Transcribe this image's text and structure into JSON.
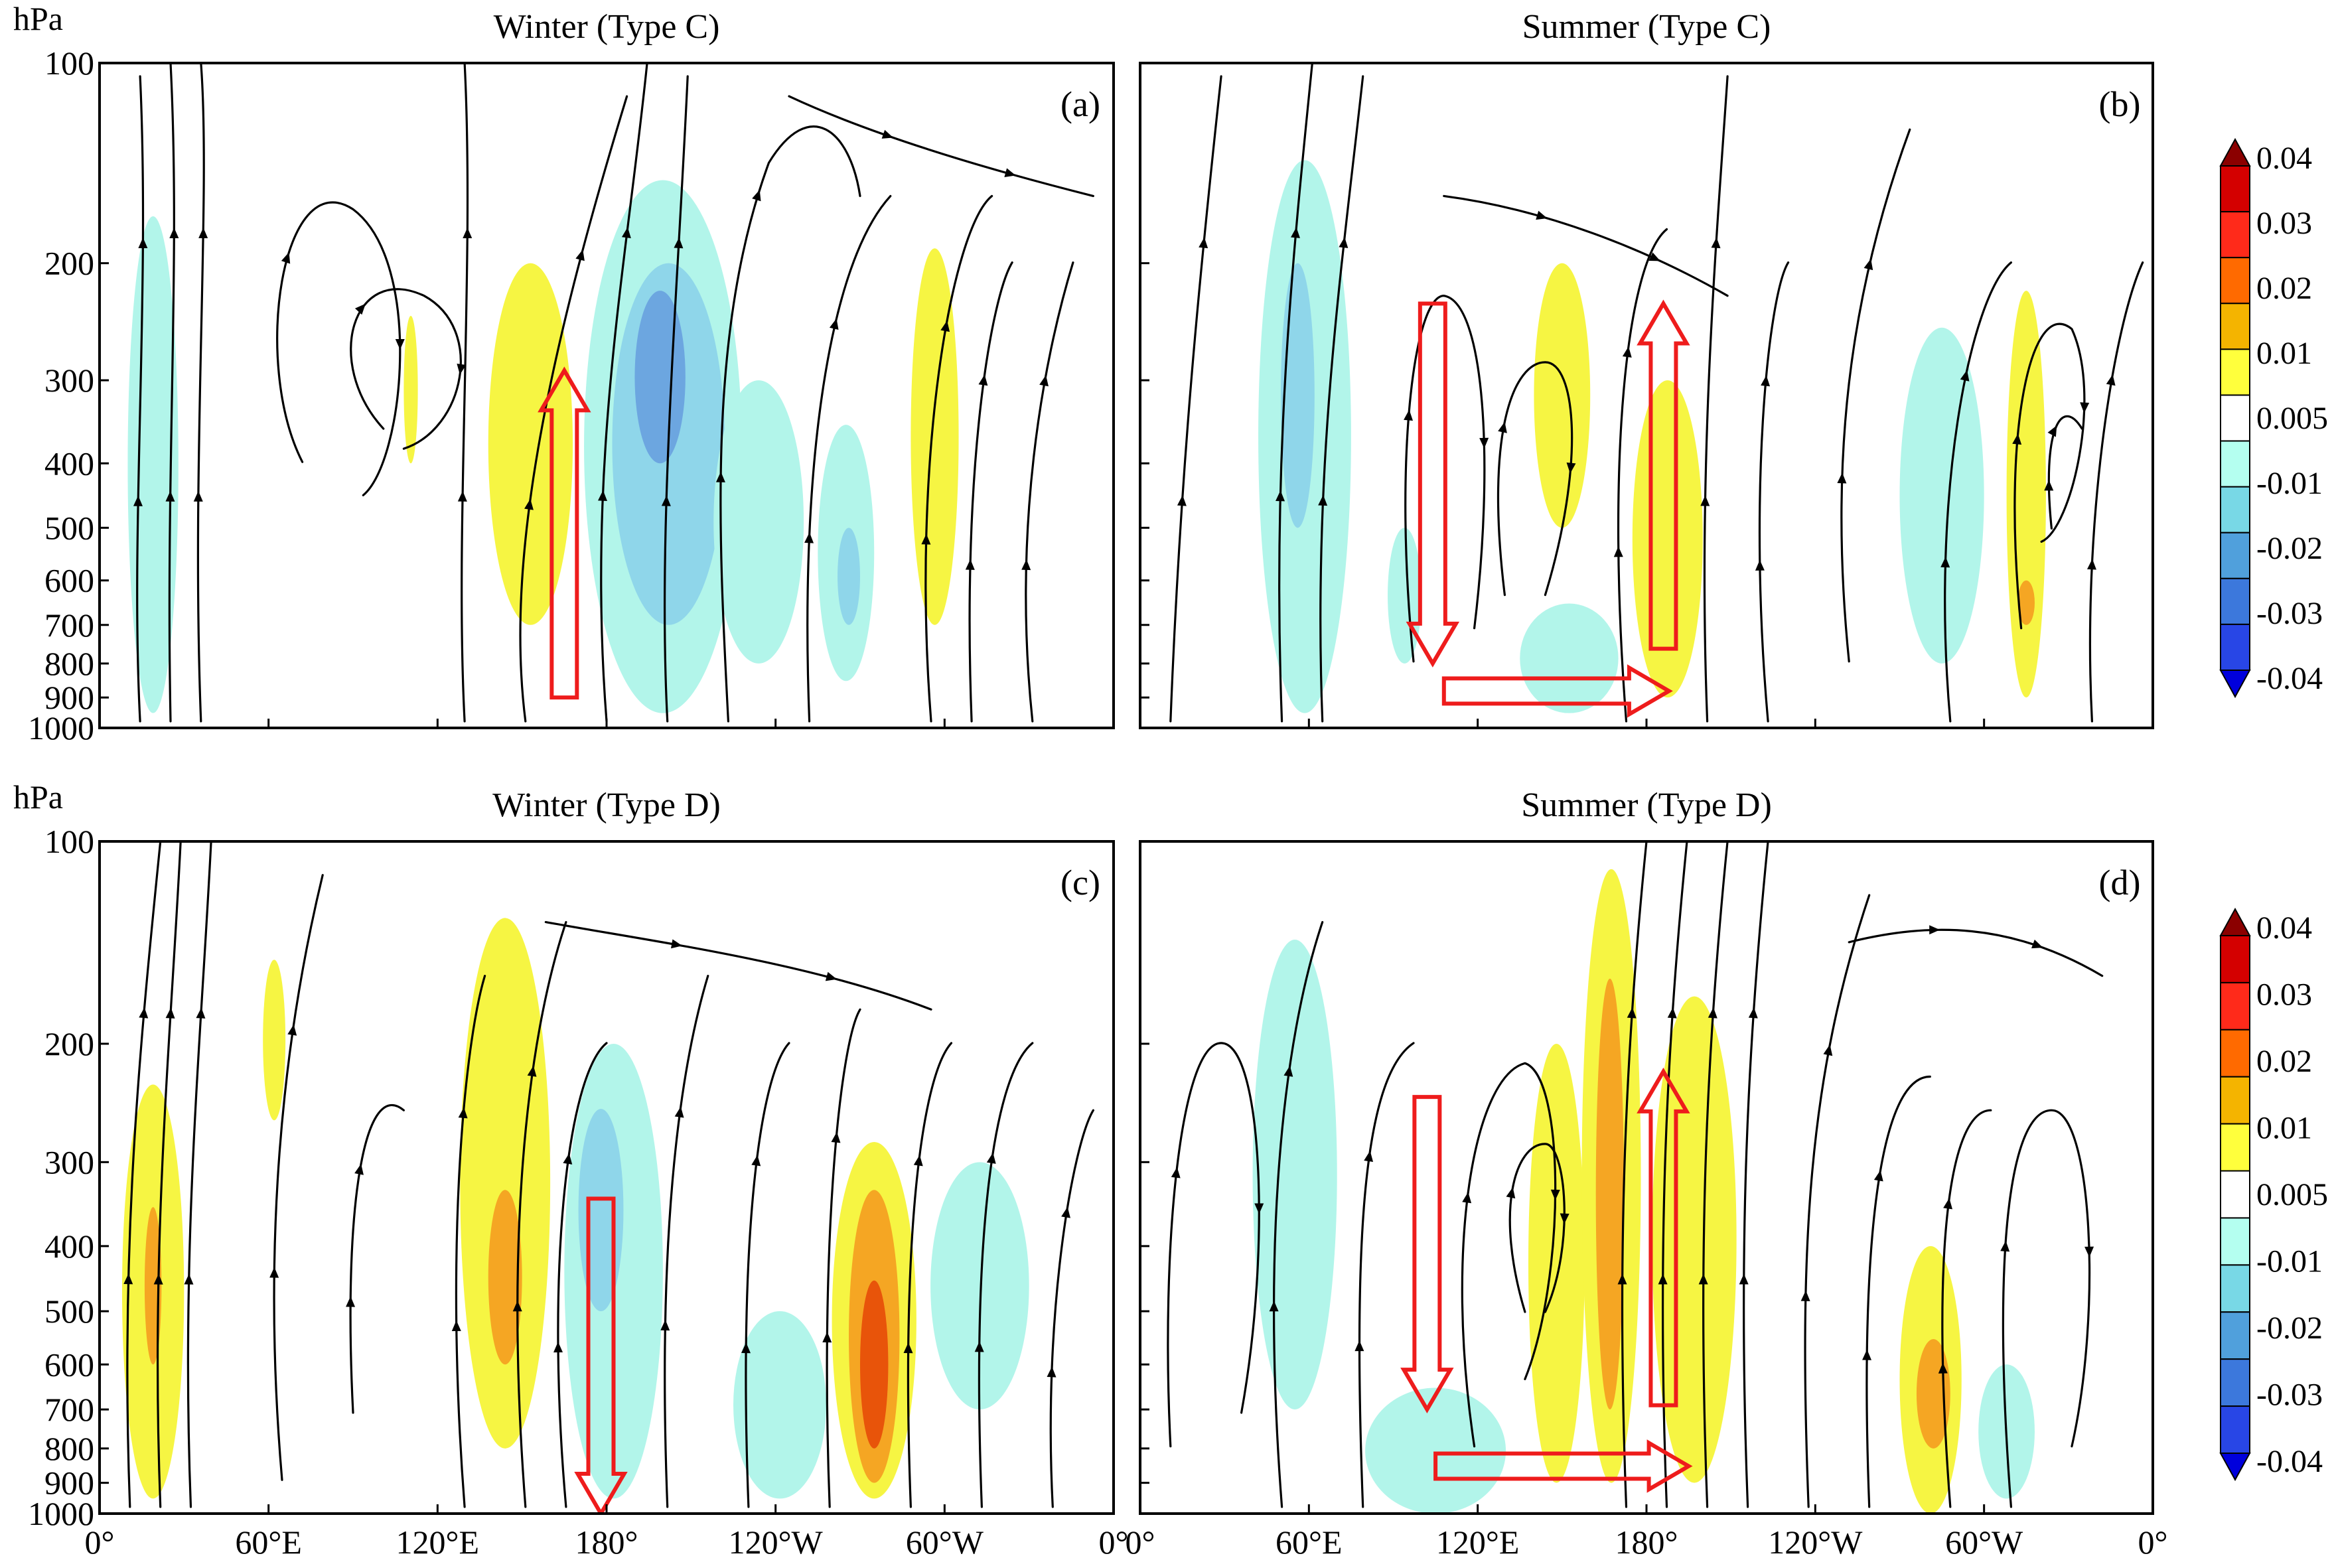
{
  "chart_data": [
    {
      "type": "heatmap",
      "panel_label": "(a)",
      "title": "Winter (Type C)",
      "ylabel": "hPa",
      "yticks": [
        "100",
        "200",
        "300",
        "400",
        "500",
        "600",
        "700",
        "800",
        "900",
        "1000"
      ],
      "xticks": [],
      "xlim": [
        0,
        360
      ],
      "ylim": [
        1000,
        100
      ],
      "y_scale": "log",
      "shading": [
        {
          "lon": [
            172,
            228
          ],
          "p": [
            150,
            950
          ],
          "value": -0.01
        },
        {
          "lon": [
            182,
            222
          ],
          "p": [
            200,
            700
          ],
          "value": -0.02
        },
        {
          "lon": [
            190,
            208
          ],
          "p": [
            220,
            400
          ],
          "value": -0.03
        },
        {
          "lon": [
            218,
            250
          ],
          "p": [
            300,
            800
          ],
          "value": -0.01
        },
        {
          "lon": [
            255,
            275
          ],
          "p": [
            350,
            850
          ],
          "value": -0.01
        },
        {
          "lon": [
            262,
            270
          ],
          "p": [
            500,
            700
          ],
          "value": -0.02
        },
        {
          "lon": [
            10,
            28
          ],
          "p": [
            170,
            950
          ],
          "value": -0.01
        },
        {
          "lon": [
            138,
            168
          ],
          "p": [
            200,
            700
          ],
          "value": 0.01
        },
        {
          "lon": [
            288,
            305
          ],
          "p": [
            190,
            700
          ],
          "value": 0.01
        },
        {
          "lon": [
            108,
            113
          ],
          "p": [
            240,
            400
          ],
          "value": 0.01
        }
      ],
      "red_arrows": [
        {
          "direction": "up",
          "lon": 165,
          "p_from": 900,
          "p_to": 290
        }
      ]
    },
    {
      "type": "heatmap",
      "panel_label": "(b)",
      "title": "Summer (Type C)",
      "ylabel": "",
      "yticks": [],
      "xticks": [],
      "xlim": [
        0,
        360
      ],
      "ylim": [
        1000,
        100
      ],
      "y_scale": "log",
      "shading": [
        {
          "lon": [
            42,
            75
          ],
          "p": [
            140,
            950
          ],
          "value": -0.01
        },
        {
          "lon": [
            50,
            62
          ],
          "p": [
            200,
            500
          ],
          "value": -0.02
        },
        {
          "lon": [
            88,
            100
          ],
          "p": [
            500,
            800
          ],
          "value": -0.01
        },
        {
          "lon": [
            135,
            170
          ],
          "p": [
            650,
            950
          ],
          "value": -0.01
        },
        {
          "lon": [
            270,
            300
          ],
          "p": [
            250,
            800
          ],
          "value": -0.01
        },
        {
          "lon": [
            140,
            160
          ],
          "p": [
            200,
            500
          ],
          "value": 0.01
        },
        {
          "lon": [
            175,
            200
          ],
          "p": [
            300,
            900
          ],
          "value": 0.01
        },
        {
          "lon": [
            308,
            322
          ],
          "p": [
            220,
            900
          ],
          "value": 0.01
        },
        {
          "lon": [
            312,
            318
          ],
          "p": [
            600,
            700
          ],
          "value": 0.02
        }
      ],
      "red_arrows": [
        {
          "direction": "down",
          "lon": 104,
          "p_from": 230,
          "p_to": 800
        },
        {
          "direction": "right",
          "p": 880,
          "lon_from": 108,
          "lon_to": 188
        },
        {
          "direction": "up",
          "lon": 186,
          "p_from": 760,
          "p_to": 230
        }
      ]
    },
    {
      "type": "heatmap",
      "panel_label": "(c)",
      "title": "Winter (Type D)",
      "ylabel": "hPa",
      "yticks": [
        "100",
        "200",
        "300",
        "400",
        "500",
        "600",
        "700",
        "800",
        "900",
        "1000"
      ],
      "xticks": [
        "0°",
        "60°E",
        "120°E",
        "180°",
        "120°W",
        "60°W",
        "0°"
      ],
      "xlim": [
        0,
        360
      ],
      "ylim": [
        1000,
        100
      ],
      "y_scale": "log",
      "shading": [
        {
          "lon": [
            8,
            30
          ],
          "p": [
            230,
            950
          ],
          "value": 0.01
        },
        {
          "lon": [
            16,
            22
          ],
          "p": [
            350,
            600
          ],
          "value": 0.02
        },
        {
          "lon": [
            58,
            66
          ],
          "p": [
            150,
            260
          ],
          "value": 0.01
        },
        {
          "lon": [
            128,
            160
          ],
          "p": [
            130,
            800
          ],
          "value": 0.01
        },
        {
          "lon": [
            138,
            150
          ],
          "p": [
            330,
            600
          ],
          "value": 0.02
        },
        {
          "lon": [
            260,
            290
          ],
          "p": [
            280,
            950
          ],
          "value": 0.01
        },
        {
          "lon": [
            266,
            284
          ],
          "p": [
            330,
            900
          ],
          "value": 0.02
        },
        {
          "lon": [
            270,
            280
          ],
          "p": [
            450,
            800
          ],
          "value": 0.03
        },
        {
          "lon": [
            165,
            200
          ],
          "p": [
            200,
            950
          ],
          "value": -0.01
        },
        {
          "lon": [
            170,
            186
          ],
          "p": [
            250,
            500
          ],
          "value": -0.02
        },
        {
          "lon": [
            225,
            258
          ],
          "p": [
            500,
            950
          ],
          "value": -0.01
        },
        {
          "lon": [
            295,
            330
          ],
          "p": [
            300,
            700
          ],
          "value": -0.01
        }
      ],
      "red_arrows": [
        {
          "direction": "down",
          "lon": 178,
          "p_from": 340,
          "p_to": 1000
        }
      ]
    },
    {
      "type": "heatmap",
      "panel_label": "(d)",
      "title": "Summer (Type D)",
      "ylabel": "",
      "yticks": [],
      "xticks": [
        "0°",
        "60°E",
        "120°E",
        "180°",
        "120°W",
        "60°W",
        "0°"
      ],
      "xlim": [
        0,
        360
      ],
      "ylim": [
        1000,
        100
      ],
      "y_scale": "log",
      "shading": [
        {
          "lon": [
            40,
            70
          ],
          "p": [
            140,
            700
          ],
          "value": -0.01
        },
        {
          "lon": [
            80,
            130
          ],
          "p": [
            650,
            1000
          ],
          "value": -0.01
        },
        {
          "lon": [
            298,
            318
          ],
          "p": [
            600,
            950
          ],
          "value": -0.01
        },
        {
          "lon": [
            138,
            158
          ],
          "p": [
            200,
            900
          ],
          "value": 0.01
        },
        {
          "lon": [
            157,
            178
          ],
          "p": [
            110,
            900
          ],
          "value": 0.01
        },
        {
          "lon": [
            162,
            172
          ],
          "p": [
            160,
            700
          ],
          "value": 0.02
        },
        {
          "lon": [
            182,
            212
          ],
          "p": [
            170,
            900
          ],
          "value": 0.01
        },
        {
          "lon": [
            270,
            292
          ],
          "p": [
            400,
            1000
          ],
          "value": 0.01
        },
        {
          "lon": [
            276,
            288
          ],
          "p": [
            550,
            800
          ],
          "value": 0.02
        }
      ],
      "red_arrows": [
        {
          "direction": "down",
          "lon": 102,
          "p_from": 240,
          "p_to": 700
        },
        {
          "direction": "right",
          "p": 850,
          "lon_from": 105,
          "lon_to": 195
        },
        {
          "direction": "up",
          "lon": 186,
          "p_from": 690,
          "p_to": 220
        }
      ]
    }
  ],
  "colorbars": [
    {
      "labels": [
        "0.04",
        "0.03",
        "0.02",
        "0.01",
        "0.005",
        "-0.01",
        "-0.02",
        "-0.03",
        "-0.04"
      ],
      "colors": [
        "#8b0000",
        "#d40000",
        "#ff2a1a",
        "#ff6a00",
        "#f4b400",
        "#ffff3c",
        "#ffffff",
        "#b4fff0",
        "#78d8e6",
        "#50a0dc",
        "#3c78dc",
        "#2846e6",
        "#0000dc"
      ]
    },
    {
      "labels": [
        "0.04",
        "0.03",
        "0.02",
        "0.01",
        "0.005",
        "-0.01",
        "-0.02",
        "-0.03",
        "-0.04"
      ],
      "colors": [
        "#8b0000",
        "#d40000",
        "#ff2a1a",
        "#ff6a00",
        "#f4b400",
        "#ffff3c",
        "#ffffff",
        "#b4fff0",
        "#78d8e6",
        "#50a0dc",
        "#3c78dc",
        "#2846e6",
        "#0000dc"
      ]
    }
  ],
  "shade_colors": {
    "0.03": "#e8540a",
    "0.02": "#f5a623",
    "0.01": "#f6f543",
    "-0.01": "#b2f5ea",
    "-0.02": "#8fd6ea",
    "-0.03": "#6ca6e0"
  },
  "arrow_color": "#ee1c1c"
}
